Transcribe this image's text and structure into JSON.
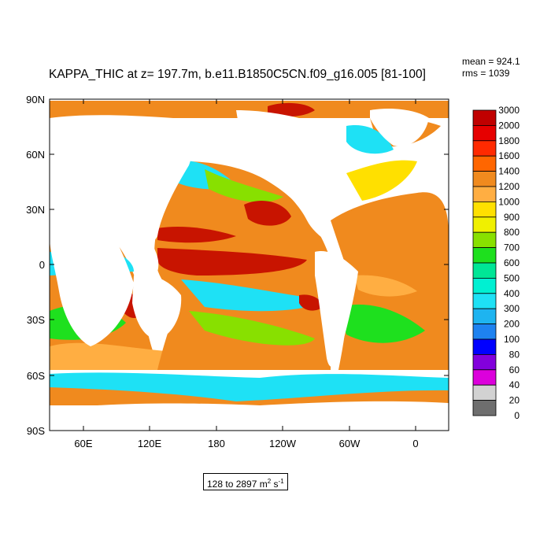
{
  "title": "KAPPA_THIC at z= 197.7m, b.e11.B1850C5CN.f09_g16.005 [81-100]",
  "stats": {
    "mean": "mean = 924.1",
    "rms": "rms = 1039"
  },
  "range": {
    "min_max": "128 to 2897 m",
    "exp1": "2",
    "unit_mid": " s",
    "exp2": "-1"
  },
  "lat_labels": [
    "90N",
    "60N",
    "30N",
    "0",
    "30S",
    "60S",
    "90S"
  ],
  "lon_labels": [
    "60E",
    "120E",
    "180",
    "120W",
    "60W",
    "0"
  ],
  "colorbar": {
    "levels": [
      "3000",
      "2000",
      "1800",
      "1600",
      "1400",
      "1200",
      "1000",
      "900",
      "800",
      "700",
      "600",
      "500",
      "400",
      "300",
      "200",
      "100",
      "80",
      "60",
      "40",
      "20",
      "0"
    ],
    "colors": [
      "#c00000",
      "#e60000",
      "#ff2a00",
      "#ff6600",
      "#f08a1e",
      "#ffae42",
      "#ffe000",
      "#f0f000",
      "#88e000",
      "#1ee01e",
      "#00e696",
      "#00f0d2",
      "#1ee1f5",
      "#1eb4f0",
      "#1e82f0",
      "#0000ff",
      "#8200dc",
      "#dc00dc",
      "#d2d2d2",
      "#6e6e6e"
    ]
  },
  "colors": {
    "land": "#ffffff",
    "warm_core": "#c81400",
    "ocean_orange": "#f08a1e",
    "southern_cyan": "#1ee1f5"
  }
}
